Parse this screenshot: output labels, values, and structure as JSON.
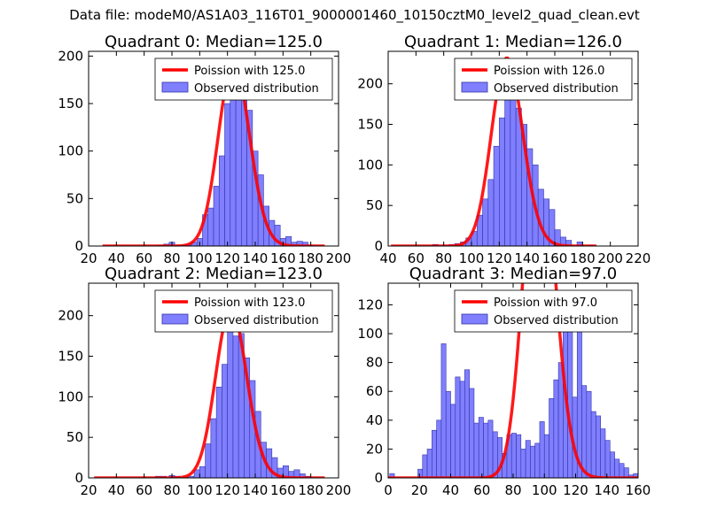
{
  "suptitle": "Data file: modeM0/AS1A03_116T01_9000001460_10150cztM0_level2_quad_clean.evt",
  "colors": {
    "poisson_line": "#ff0000",
    "bar_fill": "#7f7fff",
    "bar_edge": "#3333aa"
  },
  "chart_data": [
    {
      "type": "bar",
      "title": "Quadrant 0: Median=125.0",
      "xlim": [
        20,
        200
      ],
      "ylim": [
        0,
        205
      ],
      "xticks": [
        20,
        40,
        60,
        80,
        100,
        120,
        140,
        160,
        180,
        200
      ],
      "yticks": [
        0,
        50,
        100,
        150,
        200
      ],
      "legend": {
        "location": "top-right",
        "line_label": "Poission with 125.0",
        "bar_label": "Observed distribution"
      },
      "poisson_mean": 125,
      "poisson_x_range": [
        30,
        190
      ],
      "bar_width": 4,
      "bins": [
        [
          70,
          1
        ],
        [
          74,
          2
        ],
        [
          78,
          4
        ],
        [
          82,
          1
        ],
        [
          86,
          1
        ],
        [
          90,
          2
        ],
        [
          94,
          4
        ],
        [
          98,
          8
        ],
        [
          102,
          33
        ],
        [
          106,
          40
        ],
        [
          110,
          63
        ],
        [
          114,
          95
        ],
        [
          118,
          150
        ],
        [
          122,
          170
        ],
        [
          126,
          178
        ],
        [
          130,
          160
        ],
        [
          134,
          143
        ],
        [
          138,
          100
        ],
        [
          142,
          75
        ],
        [
          146,
          42
        ],
        [
          150,
          27
        ],
        [
          154,
          22
        ],
        [
          158,
          8
        ],
        [
          162,
          10
        ],
        [
          166,
          4
        ],
        [
          170,
          5
        ],
        [
          174,
          4
        ],
        [
          178,
          1
        ]
      ]
    },
    {
      "type": "bar",
      "title": "Quadrant 1: Median=126.0",
      "xlim": [
        40,
        220
      ],
      "ylim": [
        0,
        240
      ],
      "xticks": [
        40,
        60,
        80,
        100,
        120,
        140,
        160,
        180,
        200,
        220
      ],
      "yticks": [
        0,
        50,
        100,
        150,
        200
      ],
      "legend": {
        "location": "top-right",
        "line_label": "Poission with 126.0",
        "bar_label": "Observed distribution"
      },
      "poisson_mean": 126,
      "poisson_x_range": [
        42,
        190
      ],
      "bar_width": 4,
      "bins": [
        [
          72,
          2
        ],
        [
          80,
          1
        ],
        [
          84,
          2
        ],
        [
          88,
          3
        ],
        [
          92,
          5
        ],
        [
          96,
          10
        ],
        [
          100,
          18
        ],
        [
          104,
          38
        ],
        [
          108,
          58
        ],
        [
          112,
          82
        ],
        [
          116,
          123
        ],
        [
          120,
          158
        ],
        [
          124,
          180
        ],
        [
          128,
          194
        ],
        [
          132,
          170
        ],
        [
          136,
          150
        ],
        [
          140,
          120
        ],
        [
          144,
          100
        ],
        [
          148,
          70
        ],
        [
          152,
          58
        ],
        [
          156,
          45
        ],
        [
          160,
          20
        ],
        [
          164,
          11
        ],
        [
          168,
          7
        ],
        [
          176,
          5
        ],
        [
          184,
          1
        ]
      ]
    },
    {
      "type": "bar",
      "title": "Quadrant 2: Median=123.0",
      "xlim": [
        20,
        200
      ],
      "ylim": [
        0,
        240
      ],
      "xticks": [
        20,
        40,
        60,
        80,
        100,
        120,
        140,
        160,
        180,
        200
      ],
      "yticks": [
        0,
        50,
        100,
        150,
        200
      ],
      "legend": {
        "location": "top-right",
        "line_label": "Poission with 123.0",
        "bar_label": "Observed distribution"
      },
      "poisson_mean": 123,
      "poisson_x_range": [
        24,
        190
      ],
      "bar_width": 4,
      "bins": [
        [
          68,
          2
        ],
        [
          72,
          2
        ],
        [
          78,
          3
        ],
        [
          82,
          2
        ],
        [
          88,
          1
        ],
        [
          92,
          2
        ],
        [
          96,
          10
        ],
        [
          100,
          14
        ],
        [
          104,
          42
        ],
        [
          108,
          73
        ],
        [
          112,
          112
        ],
        [
          116,
          140
        ],
        [
          120,
          190
        ],
        [
          124,
          175
        ],
        [
          128,
          178
        ],
        [
          132,
          148
        ],
        [
          136,
          120
        ],
        [
          140,
          82
        ],
        [
          144,
          44
        ],
        [
          148,
          36
        ],
        [
          152,
          25
        ],
        [
          156,
          12
        ],
        [
          160,
          15
        ],
        [
          164,
          8
        ],
        [
          168,
          10
        ],
        [
          172,
          5
        ],
        [
          176,
          2
        ]
      ]
    },
    {
      "type": "bar",
      "title": "Quadrant 3: Median=97.0",
      "xlim": [
        0,
        160
      ],
      "ylim": [
        0,
        135
      ],
      "xticks": [
        0,
        20,
        40,
        60,
        80,
        100,
        120,
        140,
        160
      ],
      "yticks": [
        0,
        20,
        40,
        60,
        80,
        100,
        120
      ],
      "legend": {
        "location": "top-right",
        "line_label": "Poission with 97.0",
        "bar_label": "Observed distribution"
      },
      "poisson_mean": 97,
      "poisson_x_range": [
        0,
        160
      ],
      "bar_width": 3,
      "bins": [
        [
          1,
          3
        ],
        [
          19,
          6
        ],
        [
          22,
          16
        ],
        [
          25,
          20
        ],
        [
          28,
          33
        ],
        [
          31,
          40
        ],
        [
          34,
          93
        ],
        [
          37,
          60
        ],
        [
          40,
          51
        ],
        [
          43,
          70
        ],
        [
          46,
          67
        ],
        [
          49,
          75
        ],
        [
          52,
          62
        ],
        [
          55,
          38
        ],
        [
          58,
          42
        ],
        [
          61,
          38
        ],
        [
          64,
          40
        ],
        [
          67,
          32
        ],
        [
          70,
          28
        ],
        [
          73,
          17
        ],
        [
          76,
          30
        ],
        [
          79,
          31
        ],
        [
          82,
          30
        ],
        [
          85,
          20
        ],
        [
          88,
          26
        ],
        [
          91,
          22
        ],
        [
          94,
          24
        ],
        [
          97,
          39
        ],
        [
          100,
          30
        ],
        [
          103,
          55
        ],
        [
          106,
          68
        ],
        [
          109,
          80
        ],
        [
          112,
          118
        ],
        [
          115,
          105
        ],
        [
          118,
          56
        ],
        [
          121,
          102
        ],
        [
          124,
          64
        ],
        [
          127,
          60
        ],
        [
          130,
          46
        ],
        [
          133,
          43
        ],
        [
          136,
          34
        ],
        [
          139,
          26
        ],
        [
          142,
          18
        ],
        [
          145,
          13
        ],
        [
          148,
          10
        ],
        [
          151,
          7
        ],
        [
          154,
          2
        ],
        [
          157,
          3
        ]
      ]
    }
  ]
}
